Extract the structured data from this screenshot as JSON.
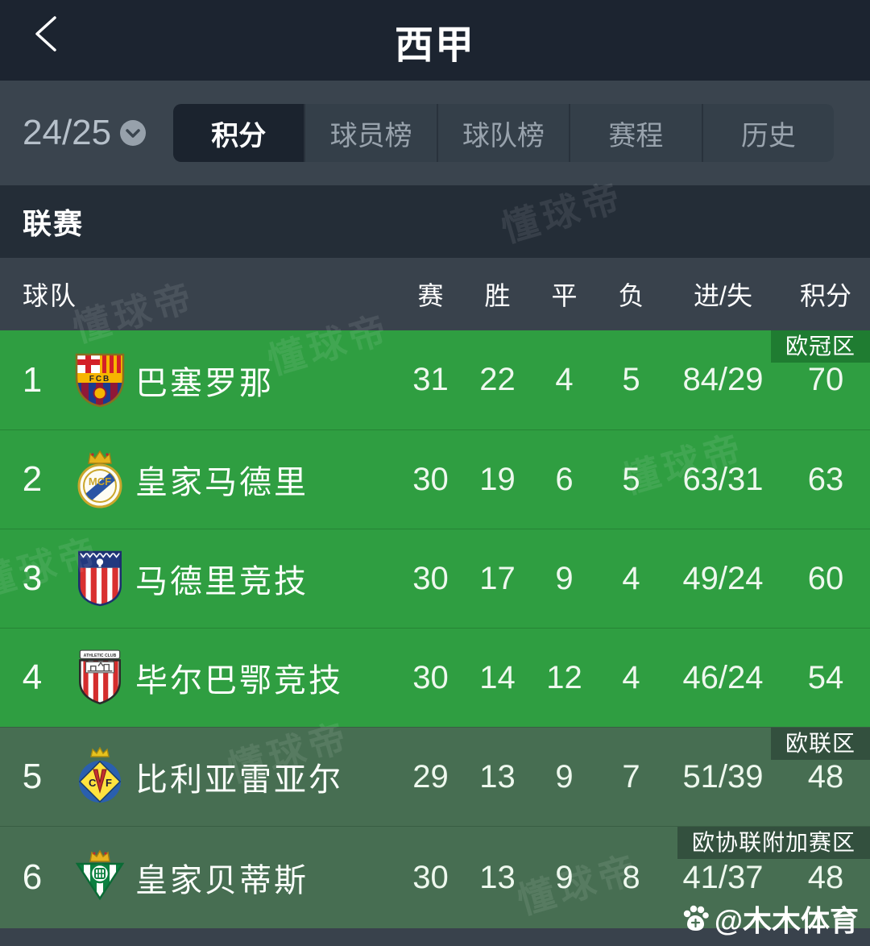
{
  "header": {
    "title": "西甲"
  },
  "toolbar": {
    "season": "24/25",
    "tabs": [
      {
        "label": "积分",
        "active": true
      },
      {
        "label": "球员榜",
        "active": false
      },
      {
        "label": "球队榜",
        "active": false
      },
      {
        "label": "赛程",
        "active": false
      },
      {
        "label": "历史",
        "active": false
      }
    ]
  },
  "section": {
    "title": "联赛"
  },
  "table": {
    "columns": {
      "team": "球队",
      "played": "赛",
      "win": "胜",
      "draw": "平",
      "loss": "负",
      "goals": "进/失",
      "points": "积分"
    },
    "rows": [
      {
        "rank": "1",
        "team": "巴塞罗那",
        "crest": "barcelona-crest",
        "played": "31",
        "win": "22",
        "draw": "4",
        "loss": "5",
        "goals": "84/29",
        "points": "70",
        "zone": "欧冠区",
        "zone_type": "ucl"
      },
      {
        "rank": "2",
        "team": "皇家马德里",
        "crest": "real-madrid-crest",
        "played": "30",
        "win": "19",
        "draw": "6",
        "loss": "5",
        "goals": "63/31",
        "points": "63",
        "zone": "",
        "zone_type": "ucl"
      },
      {
        "rank": "3",
        "team": "马德里竞技",
        "crest": "atletico-madrid-crest",
        "played": "30",
        "win": "17",
        "draw": "9",
        "loss": "4",
        "goals": "49/24",
        "points": "60",
        "zone": "",
        "zone_type": "ucl"
      },
      {
        "rank": "4",
        "team": "毕尔巴鄂竞技",
        "crest": "athletic-bilbao-crest",
        "played": "30",
        "win": "14",
        "draw": "12",
        "loss": "4",
        "goals": "46/24",
        "points": "54",
        "zone": "",
        "zone_type": "ucl"
      },
      {
        "rank": "5",
        "team": "比利亚雷亚尔",
        "crest": "villarreal-crest",
        "played": "29",
        "win": "13",
        "draw": "9",
        "loss": "7",
        "goals": "51/39",
        "points": "48",
        "zone": "欧联区",
        "zone_type": "uel"
      },
      {
        "rank": "6",
        "team": "皇家贝蒂斯",
        "crest": "real-betis-crest",
        "played": "30",
        "win": "13",
        "draw": "9",
        "loss": "8",
        "goals": "41/37",
        "points": "48",
        "zone": "欧协联附加赛区",
        "zone_type": "uecl"
      }
    ]
  },
  "watermark": "懂球帝",
  "credit": {
    "handle": "@木木体育",
    "icon": "paw-icon"
  },
  "colors": {
    "bright_zone_green": "#2f9e41",
    "muted_zone_green": "#476e52",
    "ucl_badge_green": "#1f7c31",
    "uel_badge_green": "#33503e",
    "header_bg": "#1c2430",
    "toolbar_bg": "#3a444e",
    "active_tab_bg": "#1b232e",
    "section_bg": "#242d37",
    "table_header_bg": "#39424c"
  }
}
